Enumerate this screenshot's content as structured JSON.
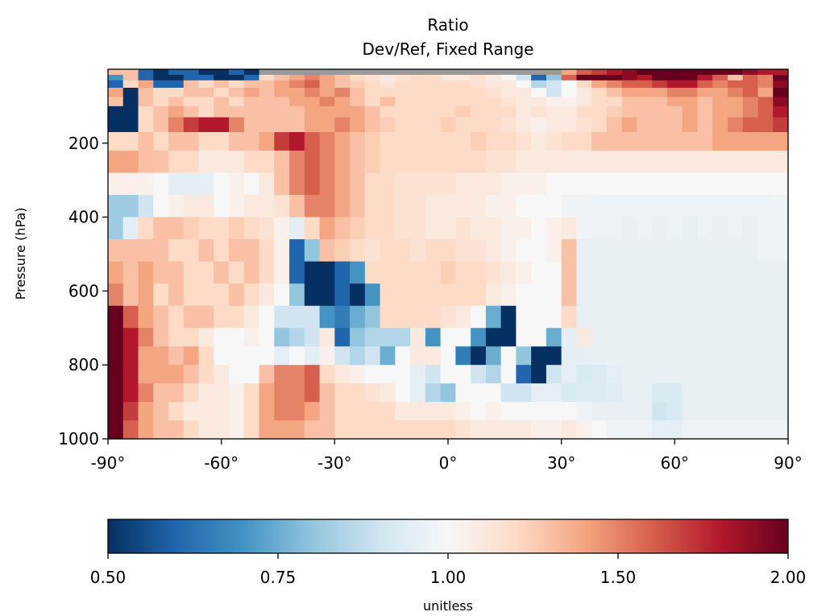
{
  "chart_data": {
    "type": "heatmap",
    "title": "Ratio",
    "subtitle": "Dev/Ref, Fixed Range",
    "xlabel": "",
    "ylabel": "Pressure (hPa)",
    "xlim": [
      -90,
      90
    ],
    "ylim": [
      1000,
      0
    ],
    "x_ticks": [
      {
        "value": -90,
        "label": "-90°"
      },
      {
        "value": -60,
        "label": "-60°"
      },
      {
        "value": -30,
        "label": "-30°"
      },
      {
        "value": 0,
        "label": "0°"
      },
      {
        "value": 30,
        "label": "30°"
      },
      {
        "value": 60,
        "label": "60°"
      },
      {
        "value": 90,
        "label": "90°"
      }
    ],
    "y_ticks": [
      {
        "value": 200,
        "label": "200"
      },
      {
        "value": 400,
        "label": "400"
      },
      {
        "value": 600,
        "label": "600"
      },
      {
        "value": 800,
        "label": "800"
      },
      {
        "value": 1000,
        "label": "1000"
      }
    ],
    "grid": false,
    "colormap": "RdBu_r",
    "colormap_stops": [
      "#053061",
      "#2166ac",
      "#4393c3",
      "#92c5de",
      "#d1e5f0",
      "#f7f7f7",
      "#fddbc7",
      "#f4a582",
      "#d6604d",
      "#b2182b",
      "#67001f"
    ],
    "color_range": [
      0.5,
      2.0
    ],
    "missing_color": "#999999",
    "colorbar": {
      "label": "unitless",
      "ticks": [
        {
          "value": 0.5,
          "label": "0.50"
        },
        {
          "value": 0.75,
          "label": "0.75"
        },
        {
          "value": 1.0,
          "label": "1.00"
        },
        {
          "value": 1.5,
          "label": "1.50"
        },
        {
          "value": 2.0,
          "label": "2.00"
        }
      ]
    },
    "lat_edges": [
      -90,
      -86,
      -82,
      -78,
      -74,
      -70,
      -66,
      -62,
      -58,
      -54,
      -50,
      -46,
      -42,
      -38,
      -34,
      -30,
      -26,
      -22,
      -18,
      -14,
      -10,
      -6,
      -2,
      2,
      6,
      10,
      14,
      18,
      22,
      26,
      30,
      34,
      38,
      42,
      46,
      50,
      54,
      58,
      62,
      66,
      70,
      74,
      78,
      82,
      86,
      90
    ],
    "pressure_levels": [
      {
        "top": 0,
        "bottom": 15
      },
      {
        "top": 15,
        "bottom": 30
      },
      {
        "top": 30,
        "bottom": 50
      },
      {
        "top": 50,
        "bottom": 75
      },
      {
        "top": 75,
        "bottom": 100
      },
      {
        "top": 100,
        "bottom": 130
      },
      {
        "top": 130,
        "bottom": 170
      },
      {
        "top": 170,
        "bottom": 220
      },
      {
        "top": 220,
        "bottom": 280
      },
      {
        "top": 280,
        "bottom": 340
      },
      {
        "top": 340,
        "bottom": 400
      },
      {
        "top": 400,
        "bottom": 460
      },
      {
        "top": 460,
        "bottom": 520
      },
      {
        "top": 520,
        "bottom": 580
      },
      {
        "top": 580,
        "bottom": 640
      },
      {
        "top": 640,
        "bottom": 700
      },
      {
        "top": 700,
        "bottom": 750
      },
      {
        "top": 750,
        "bottom": 800
      },
      {
        "top": 800,
        "bottom": 850
      },
      {
        "top": 850,
        "bottom": 900
      },
      {
        "top": 900,
        "bottom": 950
      },
      {
        "top": 950,
        "bottom": 1000
      }
    ],
    "values": [
      [
        1.3,
        1.3,
        0.6,
        0.5,
        0.6,
        0.6,
        0.5,
        0.5,
        0.6,
        0.5,
        null,
        null,
        null,
        null,
        null,
        null,
        null,
        null,
        null,
        null,
        null,
        null,
        null,
        null,
        null,
        null,
        null,
        null,
        null,
        null,
        1.4,
        1.6,
        1.7,
        1.8,
        1.9,
        2.0,
        2.0,
        2.0,
        2.0,
        2.0,
        2.0,
        2.0,
        1.9,
        1.8,
        1.8
      ],
      [
        0.7,
        1.3,
        0.6,
        0.5,
        0.5,
        0.6,
        0.6,
        0.5,
        0.5,
        0.6,
        1.2,
        1.3,
        1.4,
        1.5,
        1.4,
        1.3,
        1.2,
        1.15,
        1.1,
        1.15,
        1.2,
        1.2,
        1.1,
        1.1,
        1.15,
        1.1,
        1.0,
        0.9,
        0.6,
        0.8,
        1.6,
        2.0,
        2.0,
        2.0,
        1.9,
        1.8,
        2.0,
        2.0,
        2.0,
        1.8,
        1.6,
        1.3,
        1.6,
        1.5,
        2.0
      ],
      [
        0.6,
        1.2,
        1.4,
        0.6,
        0.6,
        1.3,
        1.2,
        1.3,
        1.2,
        1.3,
        1.3,
        1.4,
        1.5,
        1.6,
        1.4,
        1.3,
        1.25,
        1.2,
        1.15,
        1.2,
        1.2,
        1.2,
        1.2,
        1.2,
        1.15,
        1.1,
        1.1,
        1.0,
        0.85,
        0.9,
        1.0,
        1.2,
        1.4,
        1.5,
        1.6,
        1.6,
        1.7,
        1.8,
        1.8,
        1.6,
        1.5,
        1.6,
        1.6,
        1.5,
        1.9
      ],
      [
        1.4,
        0.5,
        1.3,
        1.2,
        1.2,
        1.3,
        1.3,
        1.2,
        1.3,
        1.4,
        1.3,
        1.4,
        1.4,
        1.5,
        1.4,
        1.5,
        1.3,
        1.2,
        1.2,
        1.2,
        1.2,
        1.2,
        1.2,
        1.2,
        1.2,
        1.15,
        1.1,
        1.1,
        1.0,
        0.9,
        1.0,
        1.1,
        1.2,
        1.3,
        1.4,
        1.4,
        1.4,
        1.5,
        1.5,
        1.4,
        1.4,
        1.5,
        1.6,
        1.4,
        2.0
      ],
      [
        1.3,
        0.5,
        1.3,
        1.2,
        1.3,
        1.2,
        1.2,
        1.3,
        1.2,
        1.3,
        1.3,
        1.3,
        1.4,
        1.4,
        1.5,
        1.4,
        1.3,
        1.2,
        1.3,
        1.2,
        1.2,
        1.2,
        1.2,
        1.2,
        1.2,
        1.2,
        1.15,
        1.1,
        1.1,
        1.05,
        1.05,
        1.1,
        1.2,
        1.2,
        1.3,
        1.3,
        1.3,
        1.4,
        1.4,
        1.3,
        1.4,
        1.4,
        1.5,
        1.6,
        1.9
      ],
      [
        0.5,
        0.5,
        1.2,
        1.3,
        1.4,
        1.3,
        1.2,
        1.3,
        1.3,
        1.3,
        1.3,
        1.3,
        1.3,
        1.4,
        1.4,
        1.4,
        1.4,
        1.3,
        1.2,
        1.2,
        1.2,
        1.2,
        1.2,
        1.25,
        1.2,
        1.2,
        1.2,
        1.1,
        1.15,
        1.1,
        1.1,
        1.2,
        1.2,
        1.25,
        1.3,
        1.3,
        1.3,
        1.3,
        1.4,
        1.3,
        1.4,
        1.4,
        1.5,
        1.6,
        1.8
      ],
      [
        0.5,
        0.5,
        1.2,
        1.3,
        1.5,
        1.7,
        1.8,
        1.8,
        1.5,
        1.3,
        1.3,
        1.3,
        1.3,
        1.4,
        1.4,
        1.5,
        1.4,
        1.3,
        1.25,
        1.2,
        1.2,
        1.2,
        1.25,
        1.2,
        1.2,
        1.2,
        1.15,
        1.1,
        1.05,
        1.1,
        1.1,
        1.15,
        1.2,
        1.3,
        1.4,
        1.3,
        1.3,
        1.3,
        1.4,
        1.3,
        1.4,
        1.5,
        1.6,
        1.6,
        1.7
      ],
      [
        1.2,
        1.2,
        1.3,
        1.2,
        1.3,
        1.3,
        1.2,
        1.2,
        1.3,
        1.3,
        1.4,
        1.7,
        1.8,
        1.6,
        1.5,
        1.4,
        1.3,
        1.25,
        1.2,
        1.2,
        1.2,
        1.2,
        1.2,
        1.2,
        1.25,
        1.2,
        1.2,
        1.15,
        1.1,
        1.15,
        1.2,
        1.2,
        1.3,
        1.3,
        1.3,
        1.3,
        1.3,
        1.3,
        1.3,
        1.3,
        1.4,
        1.4,
        1.4,
        1.4,
        1.4
      ],
      [
        1.4,
        1.4,
        1.3,
        1.3,
        1.2,
        1.2,
        1.1,
        1.1,
        1.1,
        1.2,
        1.2,
        1.3,
        1.5,
        1.6,
        1.5,
        1.4,
        1.3,
        1.25,
        1.2,
        1.2,
        1.2,
        1.2,
        1.2,
        1.2,
        1.2,
        1.15,
        1.15,
        1.1,
        1.1,
        1.1,
        1.1,
        1.1,
        1.1,
        1.1,
        1.1,
        1.1,
        1.1,
        1.1,
        1.1,
        1.1,
        1.1,
        1.1,
        1.1,
        1.1,
        1.1
      ],
      [
        1.05,
        1.05,
        1.05,
        1.0,
        0.95,
        0.95,
        0.95,
        1.0,
        1.05,
        1.0,
        1.1,
        1.3,
        1.5,
        1.6,
        1.5,
        1.4,
        1.3,
        1.2,
        1.2,
        1.15,
        1.15,
        1.15,
        1.15,
        1.1,
        1.1,
        1.1,
        1.05,
        1.05,
        1.05,
        1.0,
        1.0,
        1.0,
        1.0,
        1.0,
        1.0,
        1.0,
        1.0,
        1.0,
        1.0,
        1.0,
        1.0,
        1.0,
        1.0,
        1.0,
        1.0
      ],
      [
        0.82,
        0.82,
        0.9,
        1.0,
        1.05,
        1.1,
        1.1,
        1.0,
        1.05,
        1.1,
        1.1,
        1.15,
        1.3,
        1.5,
        1.5,
        1.4,
        1.3,
        1.2,
        1.2,
        1.15,
        1.15,
        1.1,
        1.1,
        1.1,
        1.1,
        1.05,
        1.05,
        1.0,
        1.0,
        1.0,
        0.98,
        0.98,
        0.97,
        0.97,
        0.97,
        0.97,
        0.97,
        0.97,
        0.97,
        0.97,
        0.97,
        0.97,
        0.97,
        0.97,
        0.98
      ],
      [
        0.82,
        0.95,
        1.2,
        1.3,
        1.3,
        1.25,
        1.2,
        1.2,
        1.25,
        1.2,
        1.15,
        1.05,
        0.95,
        1.2,
        1.4,
        1.3,
        1.25,
        1.2,
        1.2,
        1.15,
        1.15,
        1.1,
        1.1,
        1.15,
        1.1,
        1.1,
        1.05,
        1.05,
        1.0,
        1.05,
        1.1,
        0.98,
        0.97,
        0.97,
        0.96,
        0.97,
        0.96,
        0.97,
        0.96,
        0.97,
        0.96,
        0.97,
        0.96,
        0.97,
        0.97
      ],
      [
        1.3,
        1.3,
        1.3,
        1.3,
        1.2,
        1.2,
        1.3,
        1.2,
        1.3,
        1.3,
        1.2,
        1.05,
        0.6,
        0.8,
        1.3,
        1.25,
        1.2,
        1.15,
        1.2,
        1.2,
        1.15,
        1.2,
        1.2,
        1.15,
        1.15,
        1.1,
        1.05,
        1.0,
        1.0,
        1.05,
        1.3,
        0.96,
        0.96,
        0.96,
        0.96,
        0.96,
        0.96,
        0.96,
        0.96,
        0.96,
        0.96,
        0.96,
        0.96,
        0.97,
        0.97
      ],
      [
        1.4,
        1.3,
        1.4,
        1.3,
        1.3,
        1.2,
        1.2,
        1.3,
        1.2,
        1.3,
        1.2,
        1.05,
        0.6,
        0.5,
        0.5,
        0.6,
        0.7,
        1.2,
        1.2,
        1.2,
        1.2,
        1.2,
        1.25,
        1.2,
        1.2,
        1.15,
        1.1,
        1.05,
        1.0,
        1.0,
        1.3,
        0.96,
        0.96,
        0.96,
        0.96,
        0.96,
        0.96,
        0.96,
        0.96,
        0.96,
        0.96,
        0.96,
        0.96,
        0.96,
        0.96
      ],
      [
        1.5,
        1.3,
        1.4,
        1.2,
        1.3,
        1.2,
        1.2,
        1.2,
        1.3,
        1.2,
        1.1,
        1.0,
        0.8,
        0.5,
        0.5,
        0.6,
        0.5,
        0.7,
        1.2,
        1.2,
        1.2,
        1.2,
        1.2,
        1.2,
        1.2,
        1.1,
        1.05,
        1.0,
        1.0,
        1.0,
        1.3,
        0.96,
        0.96,
        0.96,
        0.96,
        0.96,
        0.96,
        0.96,
        0.96,
        0.96,
        0.96,
        0.96,
        0.96,
        0.96,
        0.96
      ],
      [
        2.0,
        1.6,
        1.4,
        1.3,
        1.2,
        1.3,
        1.3,
        1.2,
        1.2,
        1.1,
        1.0,
        0.9,
        0.9,
        0.9,
        0.7,
        0.65,
        0.75,
        0.8,
        1.2,
        1.2,
        1.2,
        1.2,
        1.15,
        1.1,
        1.0,
        0.75,
        0.5,
        1.0,
        1.0,
        1.0,
        1.2,
        0.96,
        0.96,
        0.96,
        0.96,
        0.96,
        0.96,
        0.96,
        0.96,
        0.96,
        0.96,
        0.96,
        0.96,
        0.96,
        0.96
      ],
      [
        2.0,
        1.8,
        1.5,
        1.3,
        1.2,
        1.2,
        1.1,
        1.0,
        1.0,
        1.05,
        1.0,
        0.8,
        0.85,
        0.9,
        1.1,
        0.6,
        0.8,
        0.85,
        0.85,
        0.85,
        1.1,
        0.7,
        1.0,
        1.0,
        0.7,
        0.5,
        0.5,
        1.0,
        1.0,
        0.75,
        0.95,
        1.1,
        0.96,
        0.96,
        0.96,
        0.96,
        0.96,
        0.96,
        0.96,
        0.96,
        0.96,
        0.96,
        0.96,
        0.96,
        0.96
      ],
      [
        2.0,
        1.8,
        1.4,
        1.4,
        1.3,
        1.4,
        1.2,
        1.0,
        1.0,
        1.0,
        1.0,
        0.95,
        1.0,
        0.95,
        1.05,
        0.9,
        0.85,
        0.9,
        0.75,
        1.0,
        1.1,
        1.1,
        1.0,
        0.65,
        0.5,
        0.75,
        1.0,
        0.8,
        0.5,
        0.5,
        0.95,
        0.95,
        0.96,
        0.96,
        0.96,
        0.96,
        0.96,
        0.96,
        0.96,
        0.96,
        0.96,
        0.96,
        0.96,
        0.96,
        0.96
      ],
      [
        2.0,
        1.8,
        1.4,
        1.4,
        1.4,
        1.3,
        1.2,
        1.1,
        1.0,
        1.0,
        1.3,
        1.5,
        1.5,
        1.6,
        1.2,
        1.1,
        1.05,
        1.0,
        1.0,
        1.0,
        0.95,
        0.9,
        1.0,
        1.0,
        0.9,
        0.85,
        1.0,
        0.6,
        0.5,
        0.9,
        0.95,
        0.92,
        0.93,
        0.95,
        0.96,
        0.96,
        0.96,
        0.96,
        0.96,
        0.96,
        0.96,
        0.96,
        0.96,
        0.96,
        0.96
      ],
      [
        2.0,
        1.8,
        1.5,
        1.3,
        1.3,
        1.2,
        1.1,
        1.1,
        1.05,
        1.2,
        1.4,
        1.5,
        1.5,
        1.6,
        1.3,
        1.2,
        1.2,
        1.15,
        1.1,
        1.0,
        0.95,
        0.85,
        0.8,
        1.0,
        1.0,
        1.0,
        0.9,
        0.9,
        0.95,
        0.95,
        0.92,
        0.93,
        0.93,
        0.94,
        0.96,
        0.96,
        0.92,
        0.92,
        0.96,
        0.96,
        0.96,
        0.96,
        0.96,
        0.96,
        0.96
      ],
      [
        2.0,
        1.7,
        1.4,
        1.3,
        1.2,
        1.1,
        1.1,
        1.1,
        1.05,
        1.2,
        1.4,
        1.5,
        1.5,
        1.4,
        1.3,
        1.2,
        1.2,
        1.2,
        1.2,
        1.1,
        1.1,
        1.1,
        1.1,
        1.05,
        1.0,
        1.05,
        1.0,
        1.0,
        1.0,
        1.0,
        1.0,
        0.97,
        0.96,
        0.96,
        0.96,
        0.96,
        0.9,
        0.92,
        0.96,
        0.96,
        0.96,
        0.96,
        0.96,
        0.96,
        0.96
      ],
      [
        2.0,
        1.6,
        1.4,
        1.3,
        1.3,
        1.2,
        1.1,
        1.1,
        1.05,
        1.2,
        1.4,
        1.4,
        1.4,
        1.3,
        1.3,
        1.2,
        1.2,
        1.2,
        1.2,
        1.2,
        1.2,
        1.2,
        1.2,
        1.15,
        1.1,
        1.1,
        1.1,
        1.1,
        1.05,
        1.05,
        1.1,
        1.05,
        1.0,
        0.97,
        0.97,
        0.97,
        0.95,
        0.95,
        0.97,
        0.97,
        0.97,
        0.97,
        0.97,
        0.97,
        0.97
      ]
    ]
  }
}
